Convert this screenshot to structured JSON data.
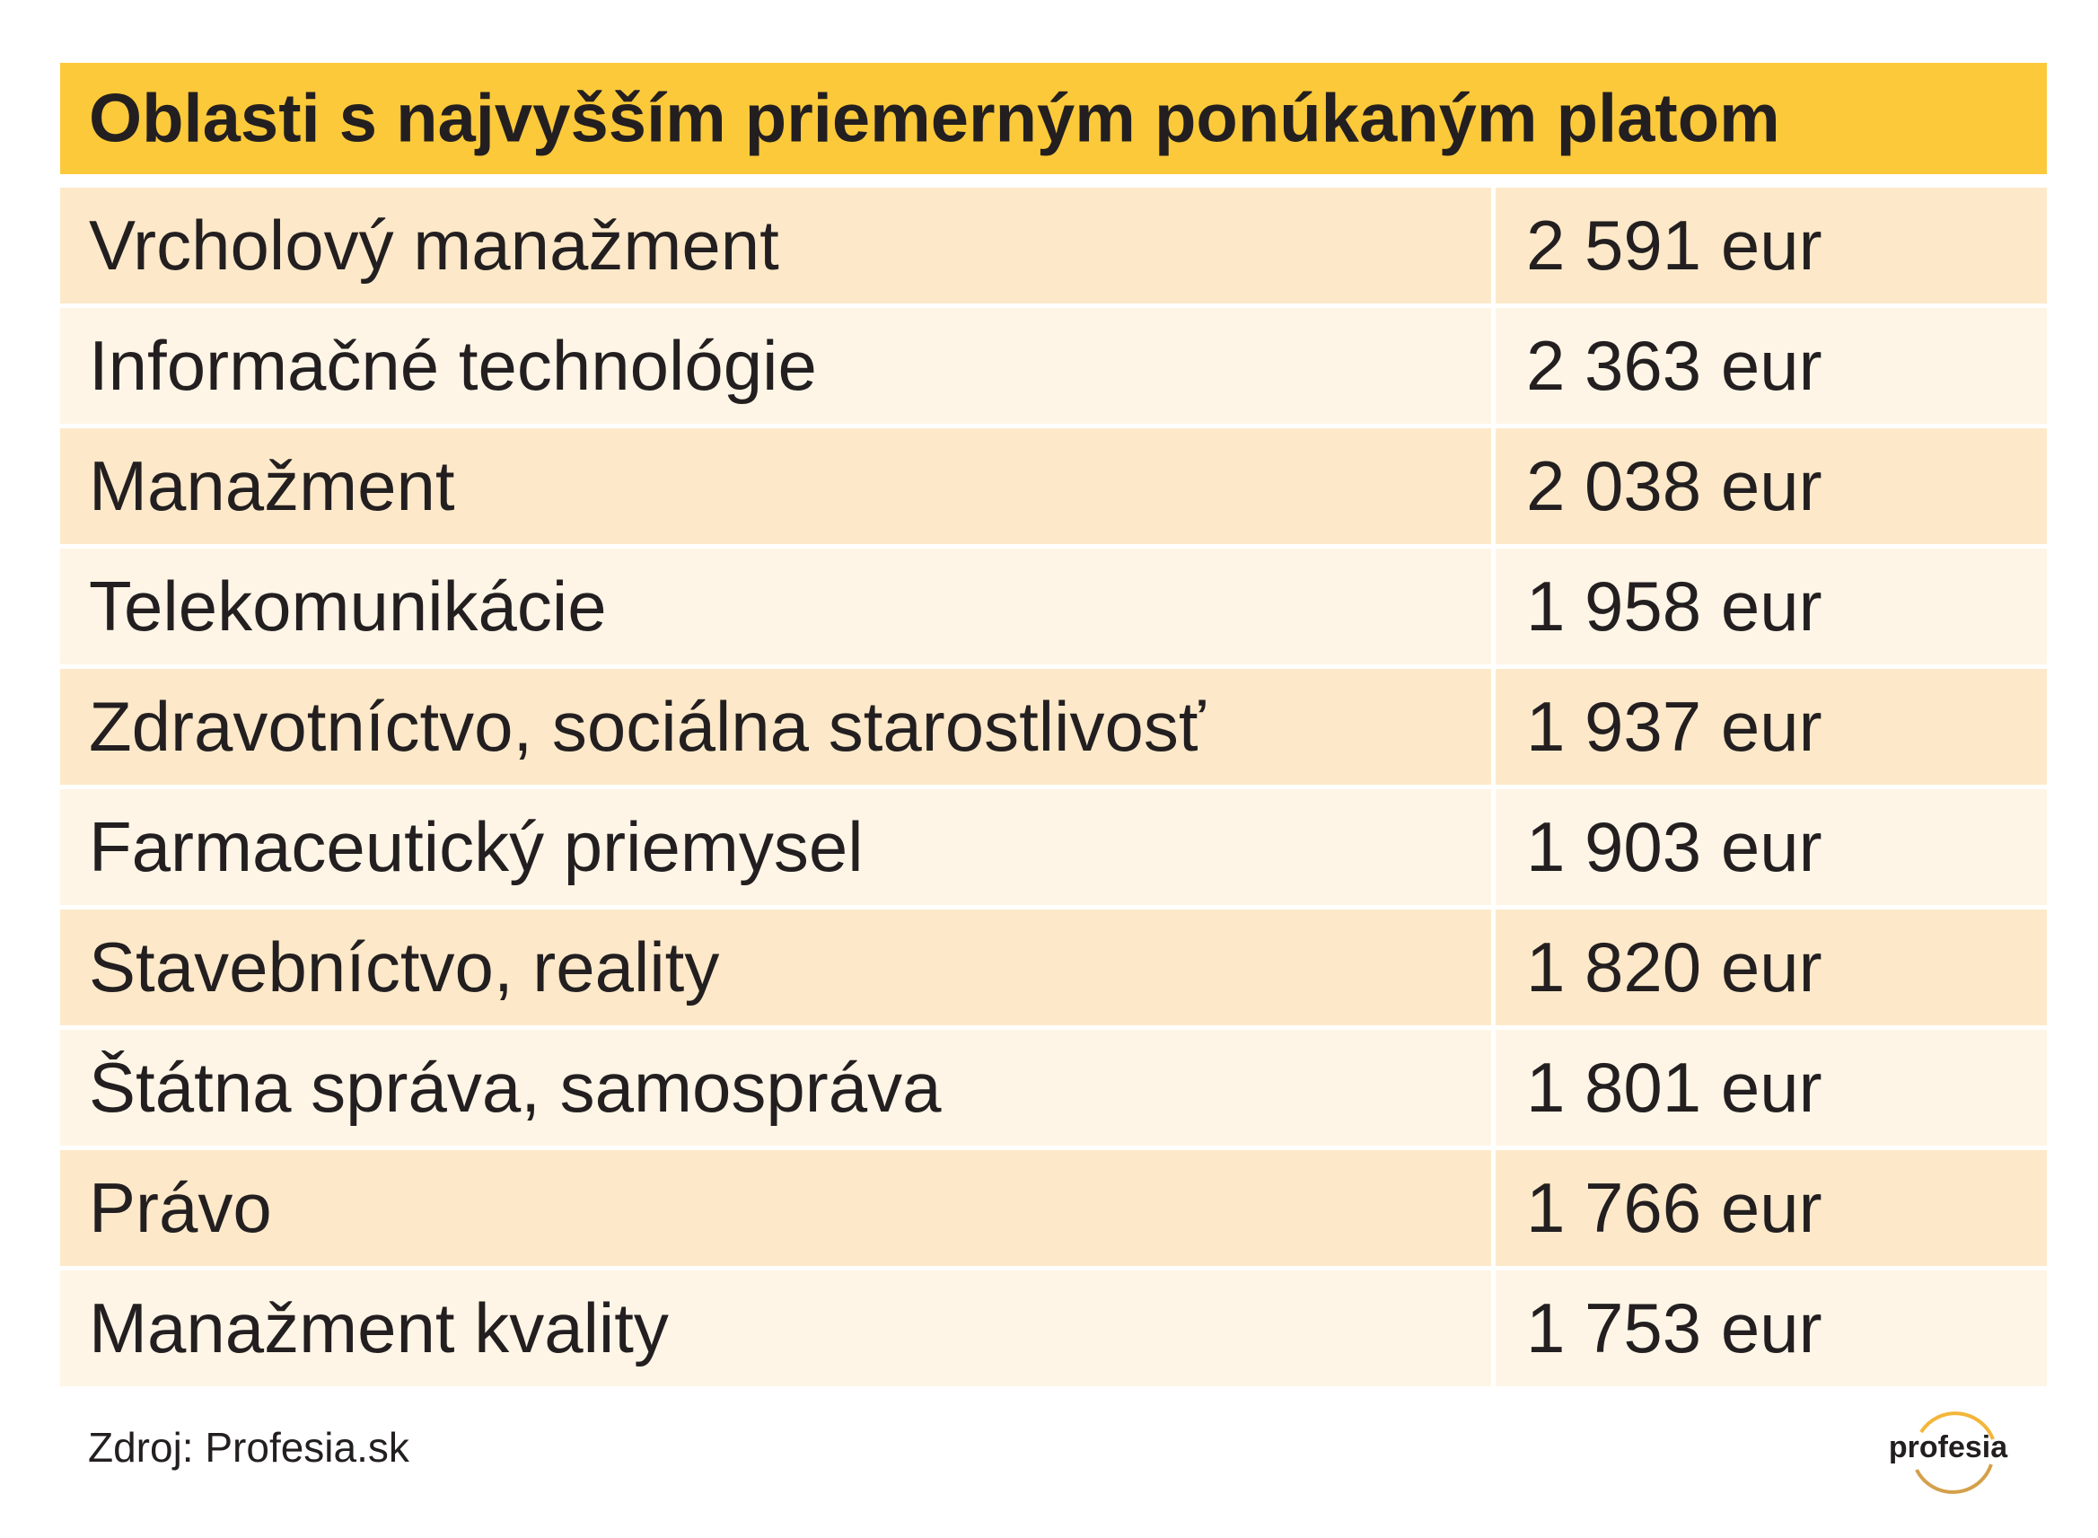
{
  "header": {
    "title": "Oblasti s najvyšším priemerným ponúkaným platom"
  },
  "table": {
    "rows": [
      [
        "Vrcholový manažment",
        "2 591 eur"
      ],
      [
        "Informačné technológie",
        "2 363 eur"
      ],
      [
        "Manažment",
        "2 038 eur"
      ],
      [
        "Telekomunikácie",
        "1 958 eur"
      ],
      [
        "Zdravotníctvo, sociálna starostlivosť",
        "1 937 eur"
      ],
      [
        "Farmaceutický priemysel",
        "1 903 eur"
      ],
      [
        "Stavebníctvo, reality",
        "1 820 eur"
      ],
      [
        "Štátna správa, samospráva",
        "1 801 eur"
      ],
      [
        "Právo",
        "1 766 eur"
      ],
      [
        "Manažment kvality",
        "1 753 eur"
      ]
    ]
  },
  "footer": {
    "source": "Zdroj: Profesia.sk",
    "logo": "profesia"
  }
}
